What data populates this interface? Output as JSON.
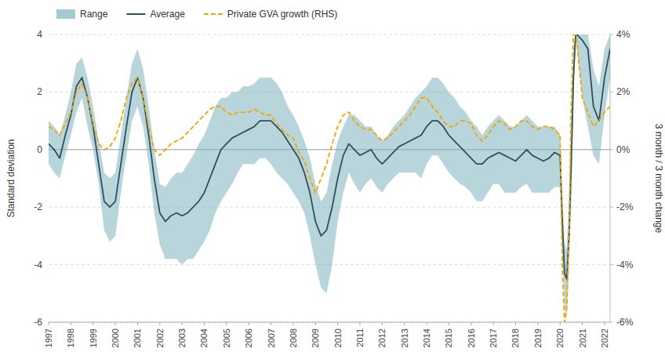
{
  "chart_data": {
    "type": "line",
    "ylabel": "Standard deviation",
    "y2label": "3 month / 3 month change",
    "xlim": [
      1997.0,
      2022.25
    ],
    "xticks": [
      1997,
      1998,
      1999,
      2000,
      2001,
      2002,
      2003,
      2004,
      2005,
      2006,
      2007,
      2008,
      2009,
      2010,
      2011,
      2012,
      2013,
      2014,
      2015,
      2016,
      2017,
      2018,
      2019,
      2020,
      2021,
      2022
    ],
    "ylim": [
      -6,
      4
    ],
    "yticks": [
      -6,
      -4,
      -2,
      0,
      2,
      4
    ],
    "y2lim": [
      -6,
      4
    ],
    "y2ticks": [
      {
        "value": -6,
        "label": "-6%"
      },
      {
        "value": -4,
        "label": "-4%"
      },
      {
        "value": -2,
        "label": "-2%"
      },
      {
        "value": 0,
        "label": "0%"
      },
      {
        "value": 2,
        "label": "2%"
      },
      {
        "value": 4,
        "label": "4%"
      }
    ],
    "grid": true,
    "legend": "top",
    "x": [
      1997.0,
      1997.25,
      1997.5,
      1997.75,
      1998.0,
      1998.25,
      1998.5,
      1998.75,
      1999.0,
      1999.25,
      1999.5,
      1999.75,
      2000.0,
      2000.25,
      2000.5,
      2000.75,
      2001.0,
      2001.25,
      2001.5,
      2001.75,
      2002.0,
      2002.25,
      2002.5,
      2002.75,
      2003.0,
      2003.25,
      2003.5,
      2003.75,
      2004.0,
      2004.25,
      2004.5,
      2004.75,
      2005.0,
      2005.25,
      2005.5,
      2005.75,
      2006.0,
      2006.25,
      2006.5,
      2006.75,
      2007.0,
      2007.25,
      2007.5,
      2007.75,
      2008.0,
      2008.25,
      2008.5,
      2008.75,
      2009.0,
      2009.25,
      2009.5,
      2009.75,
      2010.0,
      2010.25,
      2010.5,
      2010.75,
      2011.0,
      2011.25,
      2011.5,
      2011.75,
      2012.0,
      2012.25,
      2012.5,
      2012.75,
      2013.0,
      2013.25,
      2013.5,
      2013.75,
      2014.0,
      2014.25,
      2014.5,
      2014.75,
      2015.0,
      2015.25,
      2015.5,
      2015.75,
      2016.0,
      2016.25,
      2016.5,
      2016.75,
      2017.0,
      2017.25,
      2017.5,
      2017.75,
      2018.0,
      2018.25,
      2018.5,
      2018.75,
      2019.0,
      2019.25,
      2019.5,
      2019.75,
      2020.0,
      2020.1,
      2020.2,
      2020.3,
      2020.4,
      2020.5,
      2020.6,
      2020.7,
      2020.75,
      2021.0,
      2021.25,
      2021.5,
      2021.75,
      2022.0,
      2022.25
    ],
    "series": [
      {
        "name": "Range",
        "type": "area",
        "color": "#7fb3bf",
        "upper": [
          1.0,
          0.8,
          0.5,
          1.2,
          2.0,
          3.0,
          3.2,
          2.5,
          1.5,
          0.3,
          -0.8,
          -1.0,
          -0.8,
          0.5,
          1.8,
          3.0,
          3.5,
          2.8,
          1.5,
          0.0,
          -1.2,
          -1.3,
          -1.0,
          -0.8,
          -0.8,
          -0.5,
          -0.2,
          0.2,
          0.5,
          1.0,
          1.5,
          1.8,
          1.8,
          2.0,
          2.0,
          2.2,
          2.2,
          2.3,
          2.5,
          2.5,
          2.5,
          2.3,
          2.0,
          1.5,
          1.2,
          0.8,
          0.3,
          -0.3,
          -1.2,
          -1.8,
          -1.5,
          -0.5,
          0.3,
          0.8,
          1.2,
          1.2,
          1.0,
          0.8,
          0.8,
          0.5,
          0.3,
          0.5,
          0.8,
          1.0,
          1.2,
          1.5,
          1.8,
          2.0,
          2.2,
          2.5,
          2.5,
          2.3,
          2.0,
          1.8,
          1.5,
          1.3,
          1.0,
          0.8,
          0.5,
          0.8,
          1.0,
          1.2,
          1.0,
          0.8,
          0.8,
          1.0,
          1.2,
          1.0,
          0.8,
          0.8,
          0.8,
          0.8,
          0.5,
          -1.5,
          -3.2,
          -3.5,
          -1.8,
          0.8,
          3.5,
          4.0,
          4.0,
          4.0,
          4.0,
          2.8,
          2.2,
          3.5,
          4.0
        ],
        "lower": [
          -0.5,
          -0.8,
          -1.0,
          -0.2,
          0.5,
          1.3,
          1.8,
          0.8,
          0.0,
          -1.2,
          -2.8,
          -3.2,
          -3.0,
          -1.5,
          -0.2,
          1.0,
          1.5,
          0.8,
          -0.5,
          -2.2,
          -3.3,
          -3.8,
          -3.8,
          -3.8,
          -4.0,
          -3.8,
          -3.8,
          -3.5,
          -3.2,
          -2.8,
          -2.2,
          -1.8,
          -1.5,
          -1.2,
          -0.8,
          -0.5,
          -0.5,
          -0.5,
          -0.3,
          -0.3,
          -0.5,
          -0.8,
          -1.0,
          -1.2,
          -1.5,
          -1.8,
          -2.2,
          -3.0,
          -4.0,
          -4.8,
          -5.0,
          -4.0,
          -2.5,
          -1.5,
          -0.8,
          -1.2,
          -1.5,
          -1.2,
          -1.0,
          -1.3,
          -1.5,
          -1.2,
          -1.0,
          -0.8,
          -0.8,
          -0.8,
          -0.8,
          -1.0,
          -0.5,
          -0.2,
          -0.2,
          -0.5,
          -0.8,
          -1.0,
          -1.2,
          -1.3,
          -1.5,
          -1.8,
          -1.8,
          -1.5,
          -1.2,
          -1.2,
          -1.5,
          -1.5,
          -1.5,
          -1.3,
          -1.2,
          -1.5,
          -1.5,
          -1.5,
          -1.5,
          -1.3,
          -1.3,
          -3.5,
          -5.5,
          -5.8,
          -4.2,
          -2.0,
          1.5,
          3.8,
          3.5,
          1.8,
          0.8,
          -0.2,
          -0.5,
          1.2,
          2.5
        ]
      },
      {
        "name": "Average",
        "color": "#2d4f5e",
        "values": [
          0.2,
          0.0,
          -0.3,
          0.5,
          1.2,
          2.2,
          2.5,
          1.8,
          0.8,
          -0.5,
          -1.8,
          -2.0,
          -1.8,
          -0.5,
          0.8,
          2.0,
          2.5,
          1.8,
          0.5,
          -1.0,
          -2.2,
          -2.5,
          -2.3,
          -2.2,
          -2.3,
          -2.2,
          -2.0,
          -1.8,
          -1.5,
          -1.0,
          -0.5,
          0.0,
          0.2,
          0.4,
          0.5,
          0.6,
          0.7,
          0.8,
          1.0,
          1.0,
          1.0,
          0.8,
          0.6,
          0.3,
          0.0,
          -0.3,
          -0.8,
          -1.5,
          -2.5,
          -3.0,
          -2.8,
          -2.0,
          -1.0,
          -0.2,
          0.2,
          0.0,
          -0.2,
          -0.1,
          0.0,
          -0.3,
          -0.5,
          -0.3,
          -0.1,
          0.1,
          0.2,
          0.3,
          0.4,
          0.5,
          0.8,
          1.0,
          1.0,
          0.8,
          0.5,
          0.3,
          0.1,
          -0.1,
          -0.3,
          -0.5,
          -0.5,
          -0.3,
          -0.2,
          -0.1,
          -0.2,
          -0.3,
          -0.4,
          -0.2,
          0.0,
          -0.2,
          -0.3,
          -0.4,
          -0.3,
          -0.1,
          -0.2,
          -2.5,
          -4.3,
          -4.5,
          -3.0,
          -0.5,
          2.5,
          4.0,
          4.0,
          3.8,
          3.5,
          1.5,
          1.0,
          2.5,
          3.5
        ]
      },
      {
        "name": "Private GVA growth (RHS)",
        "color": "#f0a500",
        "axis": "y2",
        "line_style": "dashed",
        "values": [
          0.8,
          0.7,
          0.5,
          0.9,
          1.3,
          2.0,
          2.3,
          1.8,
          0.9,
          0.2,
          0.0,
          0.1,
          0.4,
          1.0,
          1.8,
          2.3,
          2.5,
          1.8,
          0.8,
          0.0,
          -0.2,
          0.0,
          0.2,
          0.3,
          0.4,
          0.6,
          0.8,
          1.0,
          1.2,
          1.4,
          1.5,
          1.5,
          1.3,
          1.2,
          1.3,
          1.3,
          1.3,
          1.4,
          1.3,
          1.2,
          1.2,
          0.9,
          0.7,
          0.5,
          0.4,
          -0.1,
          -0.4,
          -1.0,
          -1.5,
          -1.0,
          -0.5,
          0.2,
          0.8,
          1.2,
          1.3,
          1.0,
          0.8,
          0.7,
          0.7,
          0.5,
          0.3,
          0.4,
          0.6,
          0.8,
          1.0,
          1.2,
          1.5,
          1.8,
          1.8,
          1.5,
          1.3,
          1.0,
          0.8,
          0.8,
          1.0,
          1.0,
          0.9,
          0.5,
          0.3,
          0.5,
          0.8,
          1.0,
          0.9,
          0.7,
          0.8,
          1.0,
          1.0,
          0.8,
          0.7,
          0.8,
          0.8,
          0.7,
          0.5,
          -4.0,
          -6.0,
          -5.5,
          -3.0,
          1.5,
          4.0,
          4.0,
          3.8,
          1.8,
          1.3,
          0.8,
          1.0,
          1.3,
          1.5
        ]
      }
    ]
  }
}
